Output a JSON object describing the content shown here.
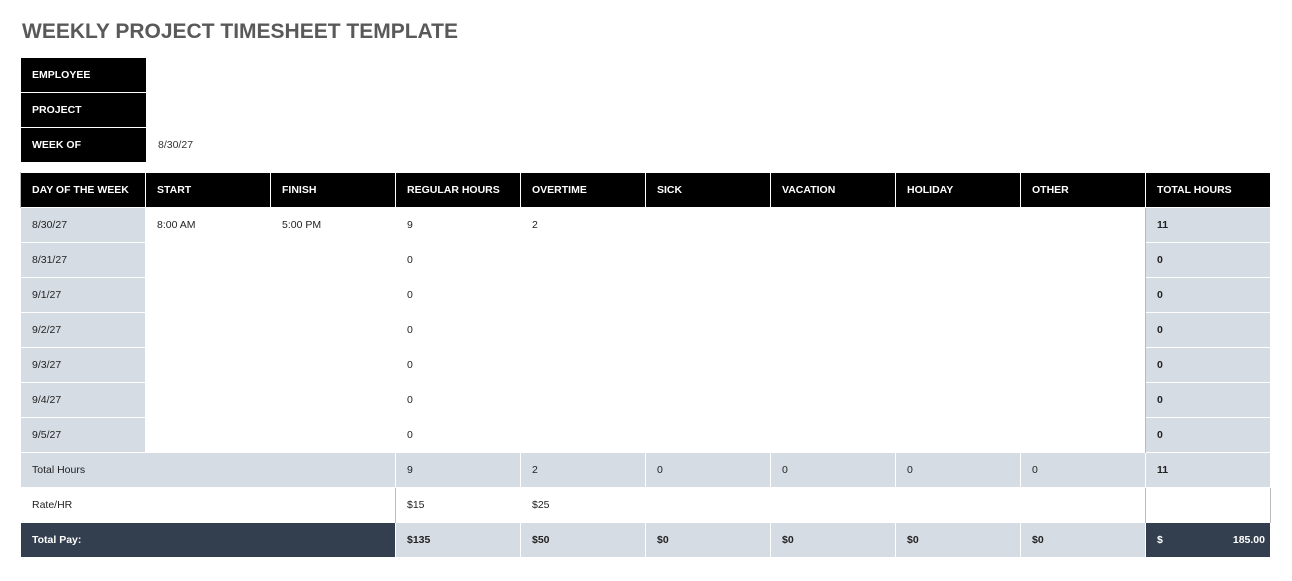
{
  "title": "WEEKLY PROJECT TIMESHEET TEMPLATE",
  "info": [
    {
      "label": "EMPLOYEE",
      "value": ""
    },
    {
      "label": "PROJECT",
      "value": ""
    },
    {
      "label": "WEEK OF",
      "value": "8/30/27"
    }
  ],
  "headers": [
    "DAY OF THE WEEK",
    "START",
    "FINISH",
    "REGULAR HOURS",
    "OVERTIME",
    "SICK",
    "VACATION",
    "HOLIDAY",
    "OTHER",
    "TOTAL HOURS"
  ],
  "rows": [
    {
      "day": "8/30/27",
      "start": "8:00 AM",
      "finish": "5:00 PM",
      "regular": "9",
      "overtime": "2",
      "sick": "",
      "vacation": "",
      "holiday": "",
      "other": "",
      "total": "11"
    },
    {
      "day": "8/31/27",
      "start": "",
      "finish": "",
      "regular": "0",
      "overtime": "",
      "sick": "",
      "vacation": "",
      "holiday": "",
      "other": "",
      "total": "0"
    },
    {
      "day": "9/1/27",
      "start": "",
      "finish": "",
      "regular": "0",
      "overtime": "",
      "sick": "",
      "vacation": "",
      "holiday": "",
      "other": "",
      "total": "0"
    },
    {
      "day": "9/2/27",
      "start": "",
      "finish": "",
      "regular": "0",
      "overtime": "",
      "sick": "",
      "vacation": "",
      "holiday": "",
      "other": "",
      "total": "0"
    },
    {
      "day": "9/3/27",
      "start": "",
      "finish": "",
      "regular": "0",
      "overtime": "",
      "sick": "",
      "vacation": "",
      "holiday": "",
      "other": "",
      "total": "0"
    },
    {
      "day": "9/4/27",
      "start": "",
      "finish": "",
      "regular": "0",
      "overtime": "",
      "sick": "",
      "vacation": "",
      "holiday": "",
      "other": "",
      "total": "0"
    },
    {
      "day": "9/5/27",
      "start": "",
      "finish": "",
      "regular": "0",
      "overtime": "",
      "sick": "",
      "vacation": "",
      "holiday": "",
      "other": "",
      "total": "0"
    }
  ],
  "totals": {
    "label": "Total Hours",
    "regular": "9",
    "overtime": "2",
    "sick": "0",
    "vacation": "0",
    "holiday": "0",
    "other": "0",
    "total": "11"
  },
  "rate": {
    "label": "Rate/HR",
    "regular": "$15",
    "overtime": "$25"
  },
  "pay": {
    "label": "Total Pay:",
    "regular": "$135",
    "overtime": "$50",
    "sick": "$0",
    "vacation": "$0",
    "holiday": "$0",
    "other": "$0",
    "currency": "$",
    "total": "185.00"
  },
  "colors": {
    "header": "#000000",
    "light": "#d6dce4",
    "dark": "#333f4f"
  }
}
